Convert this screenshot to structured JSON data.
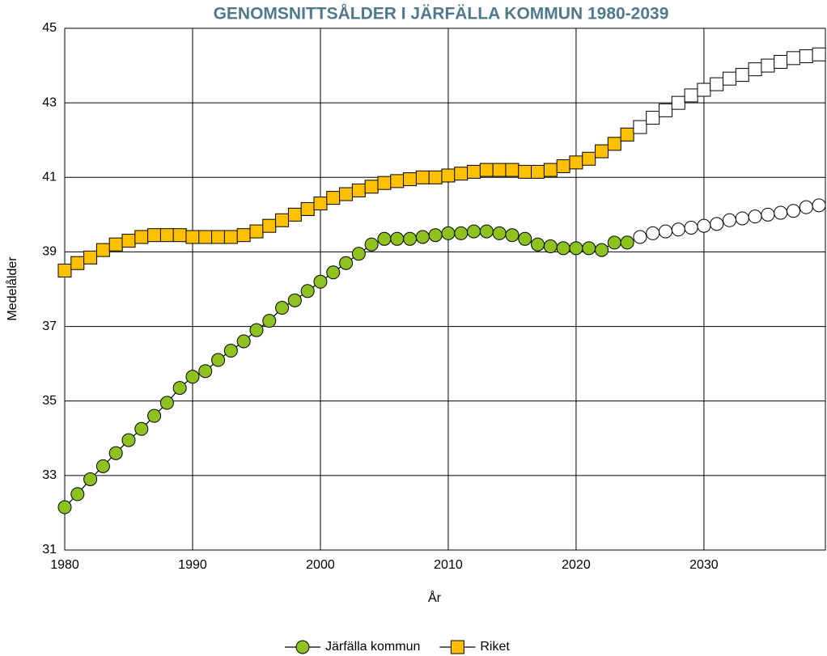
{
  "chart_data": {
    "type": "line",
    "title": "GENOMSNITTSÅLDER I JÄRFÄLLA KOMMUN 1980-2039",
    "xlabel": "År",
    "ylabel": "Medelålder",
    "x": [
      1980,
      1981,
      1982,
      1983,
      1984,
      1985,
      1986,
      1987,
      1988,
      1989,
      1990,
      1991,
      1992,
      1993,
      1994,
      1995,
      1996,
      1997,
      1998,
      1999,
      2000,
      2001,
      2002,
      2003,
      2004,
      2005,
      2006,
      2007,
      2008,
      2009,
      2010,
      2011,
      2012,
      2013,
      2014,
      2015,
      2016,
      2017,
      2018,
      2019,
      2020,
      2021,
      2022,
      2023,
      2024,
      2025,
      2026,
      2027,
      2028,
      2029,
      2030,
      2031,
      2032,
      2033,
      2034,
      2035,
      2036,
      2037,
      2038,
      2039
    ],
    "series": [
      {
        "name": "Järfälla kommun",
        "color": "#8dc21f",
        "marker": "circle",
        "values": [
          32.15,
          32.5,
          32.9,
          33.25,
          33.6,
          33.95,
          34.25,
          34.6,
          34.95,
          35.35,
          35.65,
          35.8,
          36.1,
          36.35,
          36.6,
          36.9,
          37.15,
          37.5,
          37.7,
          37.95,
          38.2,
          38.45,
          38.7,
          38.95,
          39.2,
          39.35,
          39.35,
          39.35,
          39.4,
          39.45,
          39.5,
          39.5,
          39.55,
          39.55,
          39.5,
          39.45,
          39.35,
          39.2,
          39.15,
          39.1,
          39.1,
          39.1,
          39.05,
          39.25,
          39.25,
          39.4,
          39.5,
          39.55,
          39.6,
          39.65,
          39.7,
          39.75,
          39.85,
          39.9,
          39.95,
          40.0,
          40.05,
          40.1,
          40.2,
          40.25
        ]
      },
      {
        "name": "Riket",
        "color": "#ffc000",
        "marker": "square",
        "values": [
          38.5,
          38.7,
          38.85,
          39.05,
          39.2,
          39.3,
          39.4,
          39.45,
          39.45,
          39.45,
          39.4,
          39.4,
          39.4,
          39.4,
          39.45,
          39.55,
          39.7,
          39.85,
          40.0,
          40.15,
          40.3,
          40.45,
          40.55,
          40.65,
          40.75,
          40.85,
          40.9,
          40.95,
          41.0,
          41.0,
          41.05,
          41.1,
          41.15,
          41.2,
          41.2,
          41.2,
          41.15,
          41.15,
          41.2,
          41.3,
          41.4,
          41.5,
          41.7,
          41.9,
          42.15,
          42.35,
          42.6,
          42.8,
          43.0,
          43.2,
          43.35,
          43.5,
          43.65,
          43.75,
          43.9,
          44.0,
          44.1,
          44.2,
          44.25,
          44.3
        ]
      }
    ],
    "hollow_from": 2025,
    "xlim": [
      1980,
      2039.5
    ],
    "xticks": [
      1980,
      1990,
      2000,
      2010,
      2020,
      2030
    ],
    "ylim": [
      31,
      45
    ],
    "yticks": [
      31,
      33,
      35,
      37,
      39,
      41,
      43,
      45
    ],
    "grid": true,
    "legend": "bottom"
  }
}
